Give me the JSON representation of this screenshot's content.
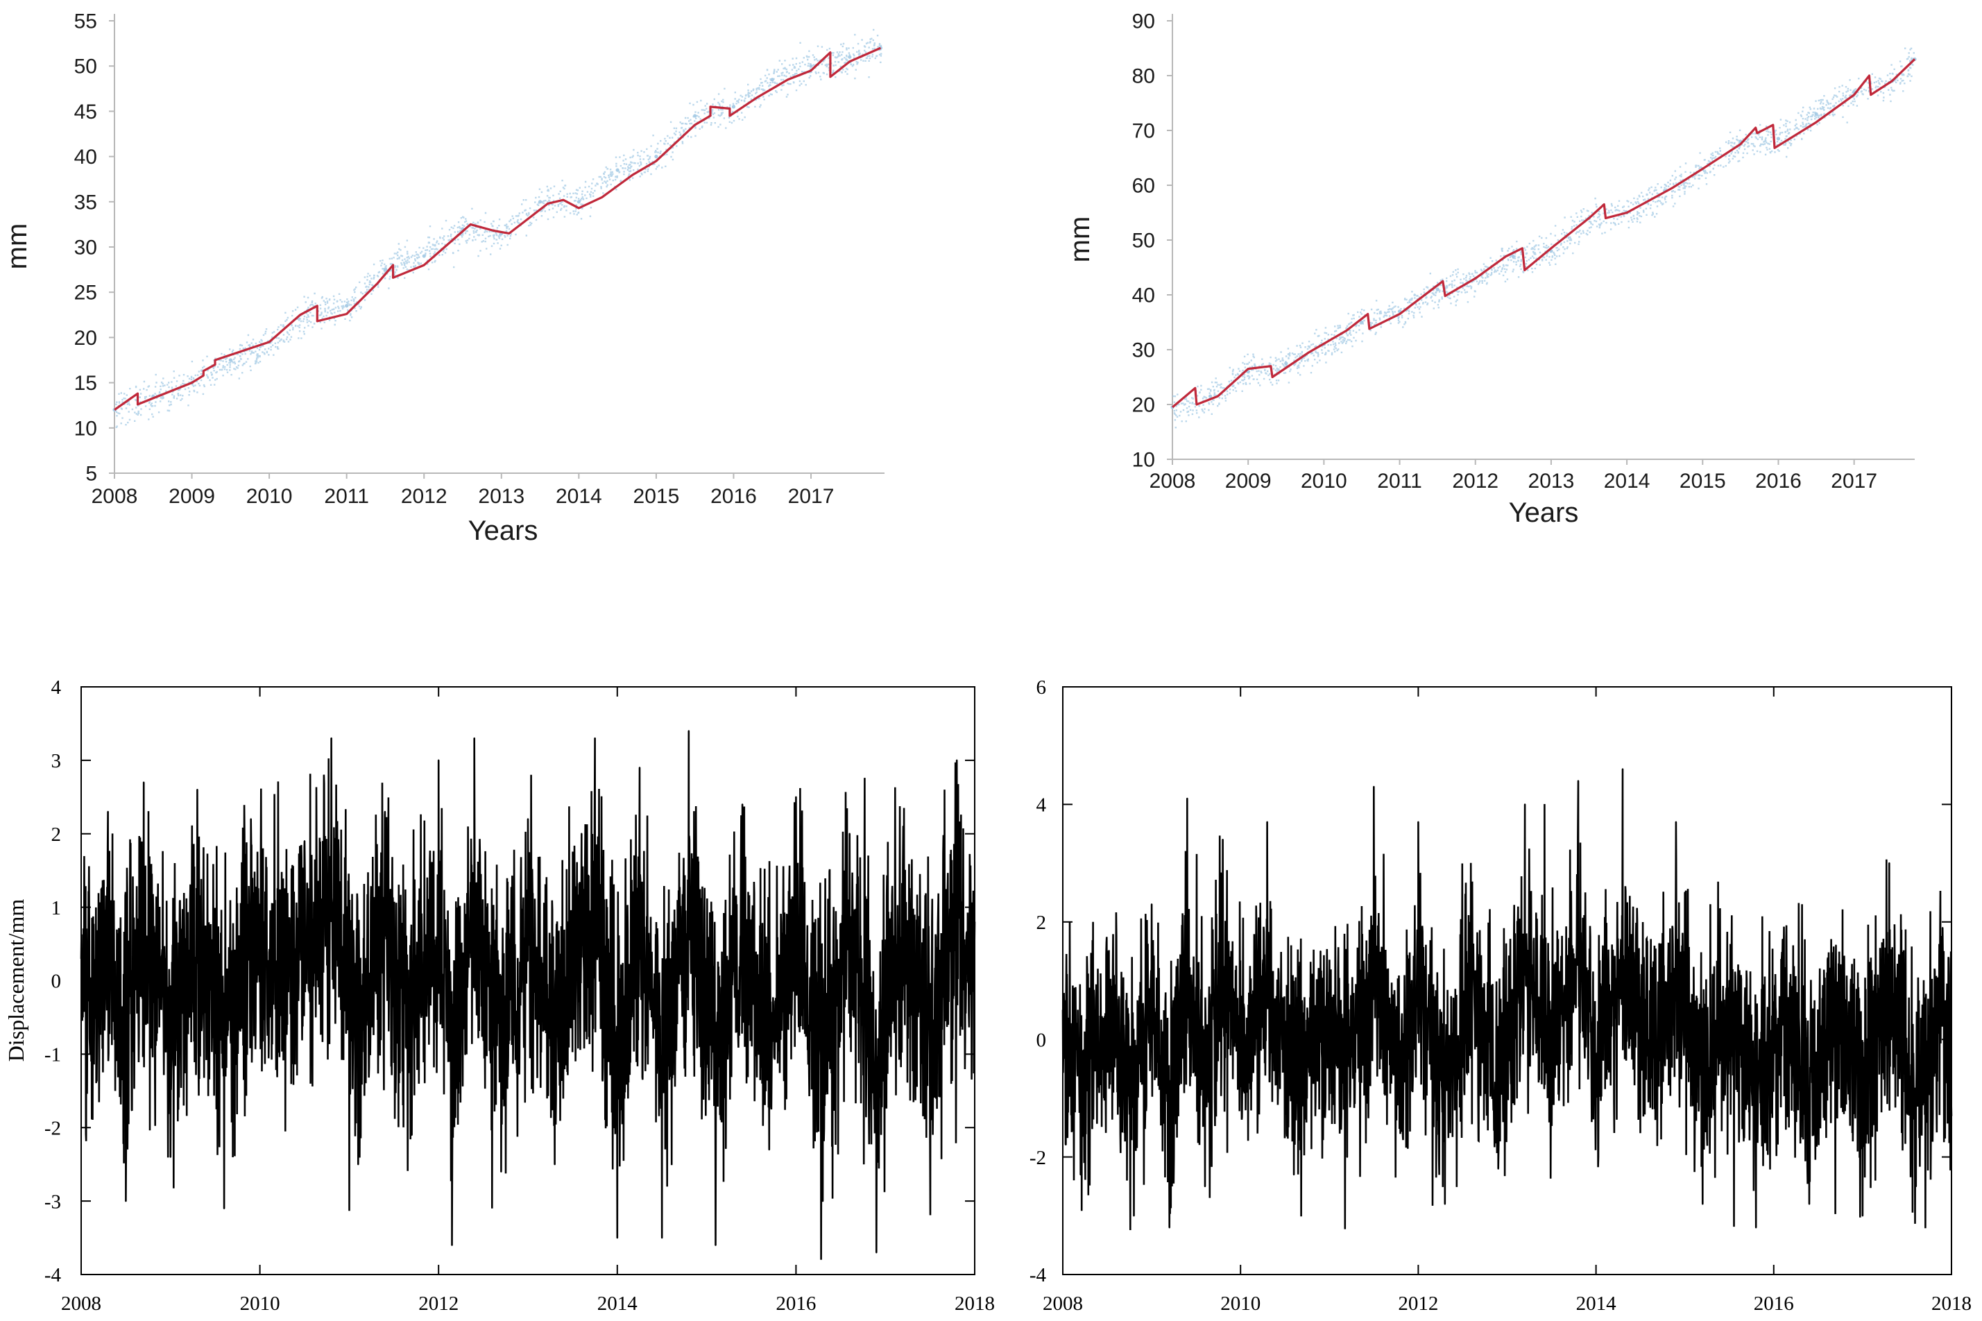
{
  "chart_data": [
    {
      "id": "top-left",
      "type": "scatter",
      "xlabel": "Years",
      "ylabel": "mm",
      "xlim": [
        2008,
        2017.95
      ],
      "ylim": [
        5,
        55
      ],
      "xticks": [
        2008,
        2009,
        2010,
        2011,
        2012,
        2013,
        2014,
        2015,
        2016,
        2017
      ],
      "xtick_labels": [
        "2008",
        "2009",
        "2010",
        "2011",
        "2012",
        "2013",
        "2014",
        "2015",
        "2016",
        "2017"
      ],
      "yticks": [
        5,
        10,
        15,
        20,
        25,
        30,
        35,
        40,
        45,
        50,
        55
      ],
      "ytick_labels": [
        "5",
        "10",
        "15",
        "20",
        "25",
        "30",
        "35",
        "40",
        "45",
        "50",
        "55"
      ],
      "grid": false,
      "legend": "none",
      "series": [
        {
          "kind": "scatter",
          "color": "#a9cde6",
          "description_points": "daily observations scattered about the fitted curve",
          "x": [
            2008.0,
            2008.5,
            2009.0,
            2009.5,
            2010.0,
            2010.5,
            2011.0,
            2011.5,
            2012.0,
            2012.5,
            2013.0,
            2013.5,
            2014.0,
            2014.5,
            2015.0,
            2015.5,
            2016.0,
            2016.5,
            2017.0,
            2017.5,
            2017.9
          ],
          "y": [
            12.0,
            13.5,
            15.0,
            17.5,
            19.5,
            23.0,
            23.5,
            27.5,
            29.0,
            32.0,
            31.5,
            35.0,
            35.0,
            38.5,
            40.0,
            44.5,
            45.5,
            48.5,
            50.0,
            51.0,
            52.0
          ]
        },
        {
          "kind": "line",
          "color": "#c0283a",
          "x": [
            2008.0,
            2008.3,
            2008.3,
            2009.0,
            2009.15,
            2009.15,
            2009.3,
            2009.3,
            2010.0,
            2010.4,
            2010.62,
            2010.62,
            2011.0,
            2011.4,
            2011.6,
            2011.6,
            2012.0,
            2012.4,
            2012.6,
            2012.9,
            2013.1,
            2013.6,
            2013.8,
            2014.0,
            2014.3,
            2014.7,
            2015.0,
            2015.5,
            2015.7,
            2015.7,
            2015.95,
            2015.95,
            2016.3,
            2016.7,
            2017.0,
            2017.25,
            2017.25,
            2017.5,
            2017.9
          ],
          "y": [
            12.0,
            13.8,
            12.6,
            15.0,
            15.8,
            16.3,
            17.0,
            17.5,
            19.5,
            22.5,
            23.5,
            21.8,
            22.6,
            26.0,
            28.0,
            26.6,
            28.0,
            31.0,
            32.5,
            31.8,
            31.5,
            34.8,
            35.2,
            34.3,
            35.5,
            38.0,
            39.5,
            43.5,
            44.5,
            45.5,
            45.3,
            44.5,
            46.5,
            48.5,
            49.5,
            51.5,
            48.8,
            50.5,
            52.0
          ]
        }
      ]
    },
    {
      "id": "top-right",
      "type": "scatter",
      "xlabel": "Years",
      "ylabel": "mm",
      "xlim": [
        2008,
        2017.8
      ],
      "ylim": [
        10,
        90
      ],
      "xticks": [
        2008,
        2009,
        2010,
        2011,
        2012,
        2013,
        2014,
        2015,
        2016,
        2017
      ],
      "xtick_labels": [
        "2008",
        "2009",
        "2010",
        "2011",
        "2012",
        "2013",
        "2014",
        "2015",
        "2016",
        "2017"
      ],
      "yticks": [
        10,
        20,
        30,
        40,
        50,
        60,
        70,
        80,
        90
      ],
      "ytick_labels": [
        "10",
        "20",
        "30",
        "40",
        "50",
        "60",
        "70",
        "80",
        "90"
      ],
      "grid": false,
      "legend": "none",
      "series": [
        {
          "kind": "scatter",
          "color": "#a9cde6",
          "x": [
            2008.0,
            2008.5,
            2009.0,
            2009.5,
            2010.0,
            2010.5,
            2011.0,
            2011.5,
            2012.0,
            2012.5,
            2013.0,
            2013.5,
            2014.0,
            2014.5,
            2015.0,
            2015.5,
            2016.0,
            2016.5,
            2017.0,
            2017.5,
            2017.8
          ],
          "y": [
            19.5,
            21.5,
            26.0,
            27.5,
            31.0,
            35.0,
            37.0,
            41.0,
            43.0,
            47.0,
            48.0,
            54.0,
            55.0,
            59.0,
            63.0,
            68.0,
            68.5,
            73.0,
            77.0,
            79.0,
            83.0
          ]
        },
        {
          "kind": "line",
          "color": "#c0283a",
          "x": [
            2008.0,
            2008.3,
            2008.32,
            2008.6,
            2009.0,
            2009.3,
            2009.32,
            2009.8,
            2010.3,
            2010.58,
            2010.6,
            2011.0,
            2011.57,
            2011.6,
            2012.0,
            2012.4,
            2012.62,
            2012.65,
            2013.0,
            2013.5,
            2013.7,
            2013.72,
            2014.0,
            2014.6,
            2015.0,
            2015.5,
            2015.7,
            2015.72,
            2015.93,
            2015.95,
            2016.5,
            2017.0,
            2017.2,
            2017.22,
            2017.5,
            2017.8
          ],
          "y": [
            19.5,
            23.0,
            20.0,
            21.5,
            26.5,
            27.0,
            25.0,
            29.5,
            33.5,
            36.5,
            33.8,
            36.5,
            42.5,
            39.8,
            43.0,
            47.0,
            48.5,
            44.5,
            48.5,
            54.0,
            56.5,
            54.0,
            55.0,
            59.5,
            63.0,
            67.5,
            70.5,
            69.5,
            71.0,
            66.8,
            71.5,
            76.5,
            80.0,
            76.5,
            79.0,
            83.0
          ]
        }
      ]
    },
    {
      "id": "bottom-left",
      "type": "line",
      "xlabel": "",
      "ylabel": "Displacement/mm",
      "xlim": [
        2008,
        2018
      ],
      "ylim": [
        -4,
        4
      ],
      "xticks": [
        2008,
        2010,
        2012,
        2014,
        2016,
        2018
      ],
      "xtick_labels": [
        "2008",
        "2010",
        "2012",
        "2014",
        "2016",
        "2018"
      ],
      "yticks": [
        -4,
        -3,
        -2,
        -1,
        0,
        1,
        2,
        3,
        4
      ],
      "ytick_labels": [
        "-4",
        "-3",
        "-2",
        "-1",
        "0",
        "1",
        "2",
        "3",
        "4"
      ],
      "grid": false,
      "legend": "none",
      "series": [
        {
          "kind": "line",
          "color": "#000000",
          "x": [
            2008.0,
            2008.1,
            2008.3,
            2008.5,
            2008.7,
            2009.0,
            2009.3,
            2009.6,
            2009.9,
            2010.2,
            2010.5,
            2010.8,
            2011.1,
            2011.4,
            2011.7,
            2012.0,
            2012.15,
            2012.4,
            2012.7,
            2013.0,
            2013.3,
            2013.6,
            2013.75,
            2014.0,
            2014.25,
            2014.5,
            2014.8,
            2015.1,
            2015.4,
            2015.7,
            2016.0,
            2016.3,
            2016.6,
            2016.9,
            2017.2,
            2017.5,
            2017.8,
            2018.0
          ],
          "y": [
            0.3,
            -1.0,
            2.3,
            -3.0,
            2.7,
            -2.4,
            2.6,
            -3.1,
            2.2,
            -0.5,
            1.9,
            3.3,
            -2.5,
            2.3,
            -2.1,
            3.0,
            -3.6,
            3.3,
            -2.6,
            2.2,
            -2.5,
            2.0,
            3.3,
            -3.5,
            2.9,
            -3.5,
            3.4,
            -3.6,
            2.4,
            -2.3,
            2.5,
            -3.0,
            2.0,
            -3.7,
            2.1,
            -2.2,
            3.0,
            0.8
          ]
        }
      ]
    },
    {
      "id": "bottom-right",
      "type": "line",
      "xlabel": "",
      "ylabel": "",
      "xlim": [
        2008,
        2018
      ],
      "ylim": [
        -4,
        6
      ],
      "xticks": [
        2008,
        2010,
        2012,
        2014,
        2016,
        2018
      ],
      "xtick_labels": [
        "2008",
        "2010",
        "2012",
        "2014",
        "2016",
        "2018"
      ],
      "yticks": [
        -4,
        -2,
        0,
        2,
        4,
        6
      ],
      "ytick_labels": [
        "-4",
        "-2",
        "0",
        "2",
        "4",
        "6"
      ],
      "grid": false,
      "legend": "none",
      "series": [
        {
          "kind": "line",
          "color": "#000000",
          "x": [
            2008.0,
            2008.2,
            2008.5,
            2008.8,
            2009.0,
            2009.2,
            2009.4,
            2009.6,
            2009.8,
            2010.0,
            2010.3,
            2010.6,
            2010.9,
            2011.2,
            2011.5,
            2011.8,
            2012.0,
            2012.3,
            2012.6,
            2012.9,
            2013.2,
            2013.5,
            2013.8,
            2014.0,
            2014.3,
            2014.6,
            2014.9,
            2015.0,
            2015.2,
            2015.5,
            2015.8,
            2016.1,
            2016.4,
            2016.7,
            2017.0,
            2017.3,
            2017.6,
            2017.9,
            2018.0
          ],
          "y": [
            0.5,
            -2.3,
            1.5,
            -3.0,
            2.3,
            -3.2,
            4.1,
            -2.5,
            3.4,
            -0.8,
            3.7,
            -2.3,
            1.5,
            -2.0,
            4.3,
            -1.5,
            3.7,
            -2.8,
            2.5,
            -2.2,
            4.0,
            0.5,
            4.4,
            -0.7,
            4.6,
            0.0,
            3.7,
            2.5,
            -2.8,
            1.0,
            -3.2,
            1.7,
            -2.8,
            1.6,
            -3.0,
            3.0,
            -2.5,
            1.9,
            -1.3
          ]
        }
      ]
    }
  ]
}
